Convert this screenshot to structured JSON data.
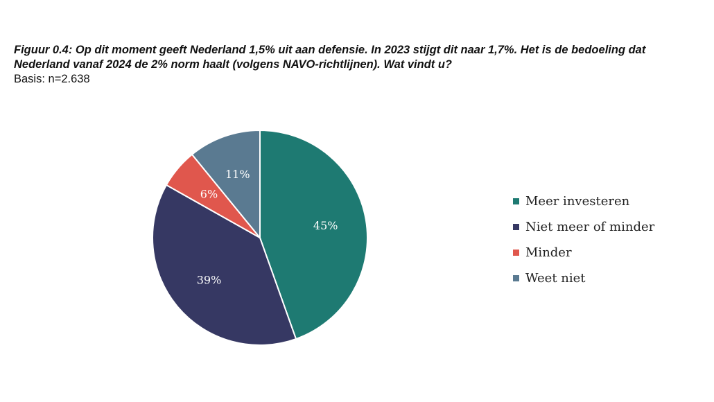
{
  "chart_data": {
    "type": "pie",
    "title": "Figuur 0.4: Op dit moment geeft Nederland 1,5% uit aan defensie. In 2023 stijgt dit naar 1,7%. Het is de bedoeling dat Nederland vanaf 2024 de 2% norm haalt (volgens NAVO-richtlijnen). Wat vindt u?",
    "subtitle": "Basis: n=2.638",
    "categories": [
      "Meer investeren",
      "Niet meer of minder",
      "Minder",
      "Weet niet"
    ],
    "values": [
      45,
      39,
      6,
      11
    ],
    "data_labels": [
      "45%",
      "39%",
      "6%",
      "11%"
    ],
    "colors": [
      "#1e7a72",
      "#363863",
      "#e0574d",
      "#5a7a91"
    ],
    "legend_position": "right"
  }
}
